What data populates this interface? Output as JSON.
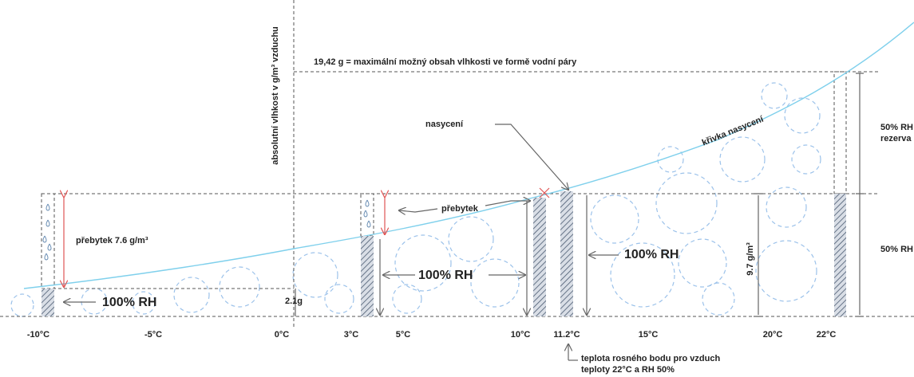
{
  "axis_label": "absolutní vlhkost v g/m³ vzduchu",
  "max_line": "19,42 g = maximální možný obsah vlhkosti ve formě vodní páry",
  "saturation": "nasycení",
  "curve_label": "křivka nasycení",
  "right_labels": {
    "upper": [
      "50% RH",
      "rezerva"
    ],
    "lower": "50% RH"
  },
  "excess_big": "přebytek 7.6 g/m³",
  "excess_small": "přebytek",
  "rh_labels": [
    "100% RH",
    "100% RH",
    "100% RH"
  ],
  "value_small": "2.1g",
  "value_mid": "9.7 g/m³",
  "x_labels": [
    "-10°C",
    "-5°C",
    "0°C",
    "3°C",
    "5°C",
    "10°C",
    "11.2°C",
    "15°C",
    "20°C",
    "22°C"
  ],
  "dew_point_note": [
    "teplota rosného bodu pro vzduch",
    "teploty 22°C a RH 50%"
  ]
}
